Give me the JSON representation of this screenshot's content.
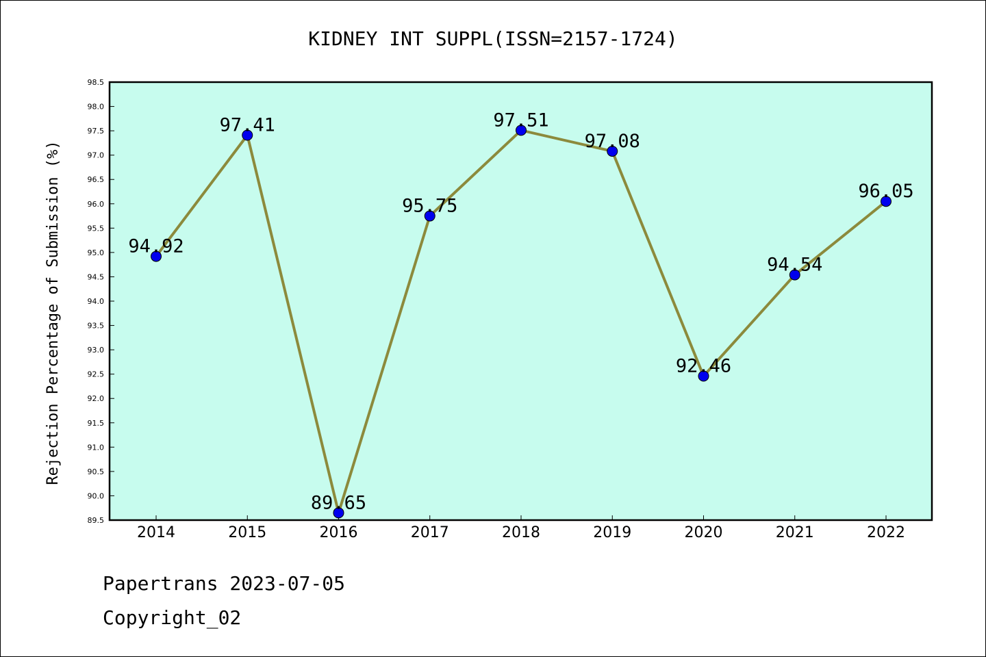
{
  "chart_data": {
    "type": "line",
    "title": "KIDNEY INT SUPPL(ISSN=2157-1724)",
    "xlabel": "",
    "ylabel": "Rejection Percentage of Submission (%)",
    "categories": [
      "2014",
      "2015",
      "2016",
      "2017",
      "2018",
      "2019",
      "2020",
      "2021",
      "2022"
    ],
    "series": [
      {
        "values": [
          94.92,
          97.41,
          89.65,
          95.75,
          97.51,
          97.08,
          92.46,
          94.54,
          96.05
        ],
        "labels": [
          "94.92",
          "97.41",
          "89.65",
          "95.75",
          "97.51",
          "97.08",
          "92.46",
          "94.54",
          "96.05"
        ]
      }
    ],
    "ylim": [
      89.5,
      98.5
    ],
    "yticks": [
      "89.5",
      "90.0",
      "90.5",
      "91.0",
      "91.5",
      "92.0",
      "92.5",
      "93.0",
      "93.5",
      "94.0",
      "94.5",
      "95.0",
      "95.5",
      "96.0",
      "96.5",
      "97.0",
      "97.5",
      "98.0",
      "98.5"
    ],
    "grid": false,
    "colors": {
      "plot_background": "#c7fcee",
      "line": "#8c8a3c",
      "marker": "#0000ee"
    }
  },
  "footer": {
    "line1": "Papertrans 2023-07-05",
    "line2": "Copyright_02"
  }
}
